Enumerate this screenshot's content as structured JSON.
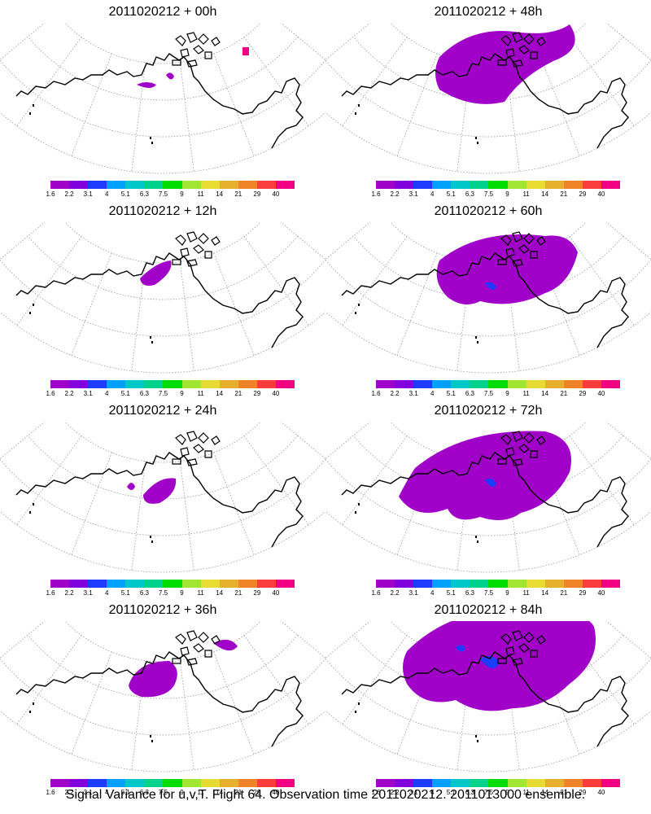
{
  "panels": [
    {
      "title": "2011020212 + 00h",
      "blobs": "p00"
    },
    {
      "title": "2011020212 + 48h",
      "blobs": "p48"
    },
    {
      "title": "2011020212 + 12h",
      "blobs": "p12"
    },
    {
      "title": "2011020212 + 60h",
      "blobs": "p60"
    },
    {
      "title": "2011020212 + 24h",
      "blobs": "p24"
    },
    {
      "title": "2011020212 + 72h",
      "blobs": "p72"
    },
    {
      "title": "2011020212 + 36h",
      "blobs": "p36"
    },
    {
      "title": "2011020212 + 84h",
      "blobs": "p84"
    }
  ],
  "colorbar": {
    "colors": [
      "#a000c8",
      "#8200dc",
      "#1e3cff",
      "#00a0ff",
      "#00c8c8",
      "#00d28c",
      "#00dc00",
      "#a0e632",
      "#e6dc32",
      "#e6af2d",
      "#f08228",
      "#fa3c3c",
      "#f00082"
    ],
    "labels": [
      "1.6",
      "2.2",
      "3.1",
      "4",
      "5.1",
      "6.3",
      "7.5",
      "9",
      "11",
      "14",
      "21",
      "29",
      "40"
    ]
  },
  "caption": "Signal Variance for u,v,T. Flight 64. Observation time 2011020212. 2011013000 ensemble."
}
